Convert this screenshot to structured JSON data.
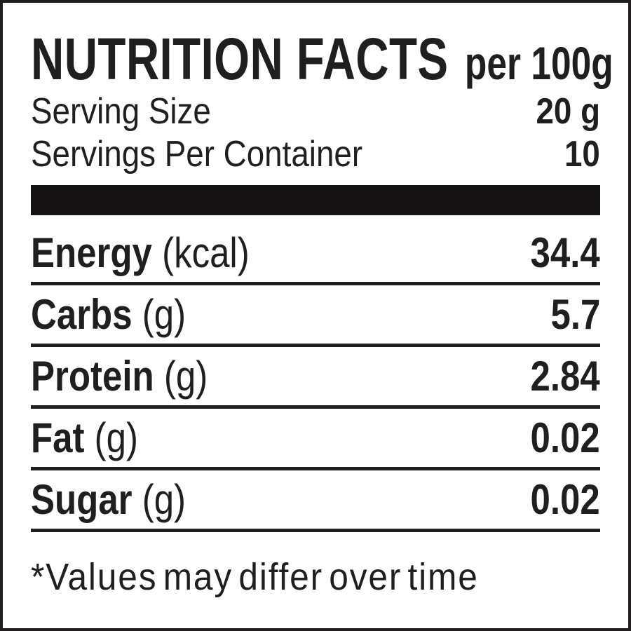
{
  "label": {
    "title": "NUTRITION FACTS",
    "title_suffix": "per 100g",
    "serving_rows": [
      {
        "label": "Serving Size",
        "value": "20 g"
      },
      {
        "label": "Servings Per Container",
        "value": "10"
      }
    ],
    "nutrients": [
      {
        "name": "Energy",
        "unit": "(kcal)",
        "value": "34.4"
      },
      {
        "name": "Carbs",
        "unit": "(g)",
        "value": "5.7"
      },
      {
        "name": "Protein",
        "unit": "(g)",
        "value": "2.84"
      },
      {
        "name": "Fat",
        "unit": "(g)",
        "value": "0.02"
      },
      {
        "name": "Sugar",
        "unit": "(g)",
        "value": "0.02"
      }
    ],
    "footnote": "*Values may differ over time",
    "colors": {
      "ink": "#211e1f",
      "bar": "#151313",
      "background": "#ffffff"
    }
  }
}
